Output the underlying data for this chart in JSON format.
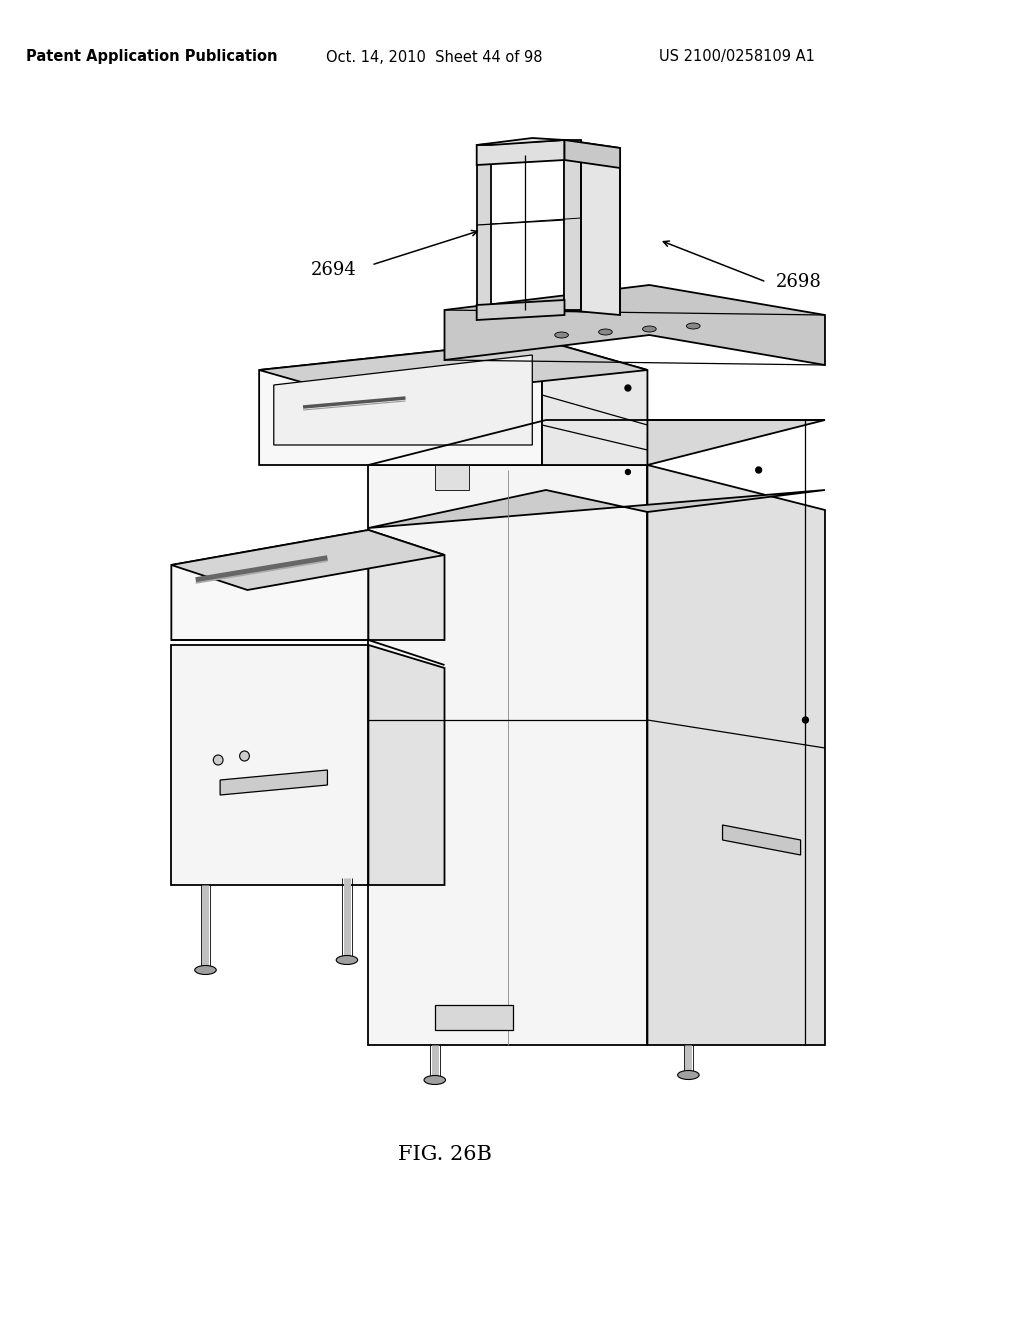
{
  "background_color": "#ffffff",
  "header_left": "Patent Application Publication",
  "header_center": "Oct. 14, 2010  Sheet 44 of 98",
  "header_right": "US 2100/0258109 A1",
  "figure_caption": "FIG. 26B",
  "label_2694": "2694",
  "label_2698": "2698",
  "header_fontsize": 10.5,
  "caption_fontsize": 15,
  "label_fontsize": 13
}
